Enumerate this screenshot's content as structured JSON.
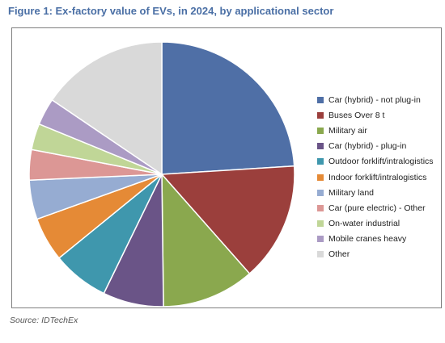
{
  "figure_title": "Figure 1: Ex-factory value of EVs, in 2024, by applicational sector",
  "source": "Source: IDTechEx",
  "chart_data": {
    "type": "pie",
    "title": "Figure 1: Ex-factory value of EVs, in 2024, by applicational sector",
    "legend_position": "right",
    "slices": [
      {
        "label": "Car (hybrid) - not plug-in",
        "value": 24.0,
        "color": "#4f6fa6"
      },
      {
        "label": "Buses Over 8 t",
        "value": 14.5,
        "color": "#9b3f3c"
      },
      {
        "label": "Military air",
        "value": 11.3,
        "color": "#8aa84e"
      },
      {
        "label": "Car (hybrid) - plug-in",
        "value": 7.4,
        "color": "#6a5487"
      },
      {
        "label": "Outdoor forklift/intralogistics",
        "value": 6.9,
        "color": "#3f97ad"
      },
      {
        "label": "Indoor forklift/intralogistics",
        "value": 5.4,
        "color": "#e58a36"
      },
      {
        "label": "Military land",
        "value": 4.8,
        "color": "#96acd2"
      },
      {
        "label": "Car (pure electric) - Other",
        "value": 3.7,
        "color": "#dc9795"
      },
      {
        "label": "On-water industrial",
        "value": 3.2,
        "color": "#c0d697"
      },
      {
        "label": "Mobile cranes heavy",
        "value": 3.3,
        "color": "#ab9bc4"
      },
      {
        "label": "Other",
        "value": 15.5,
        "color": "#d9d9d9"
      }
    ]
  }
}
